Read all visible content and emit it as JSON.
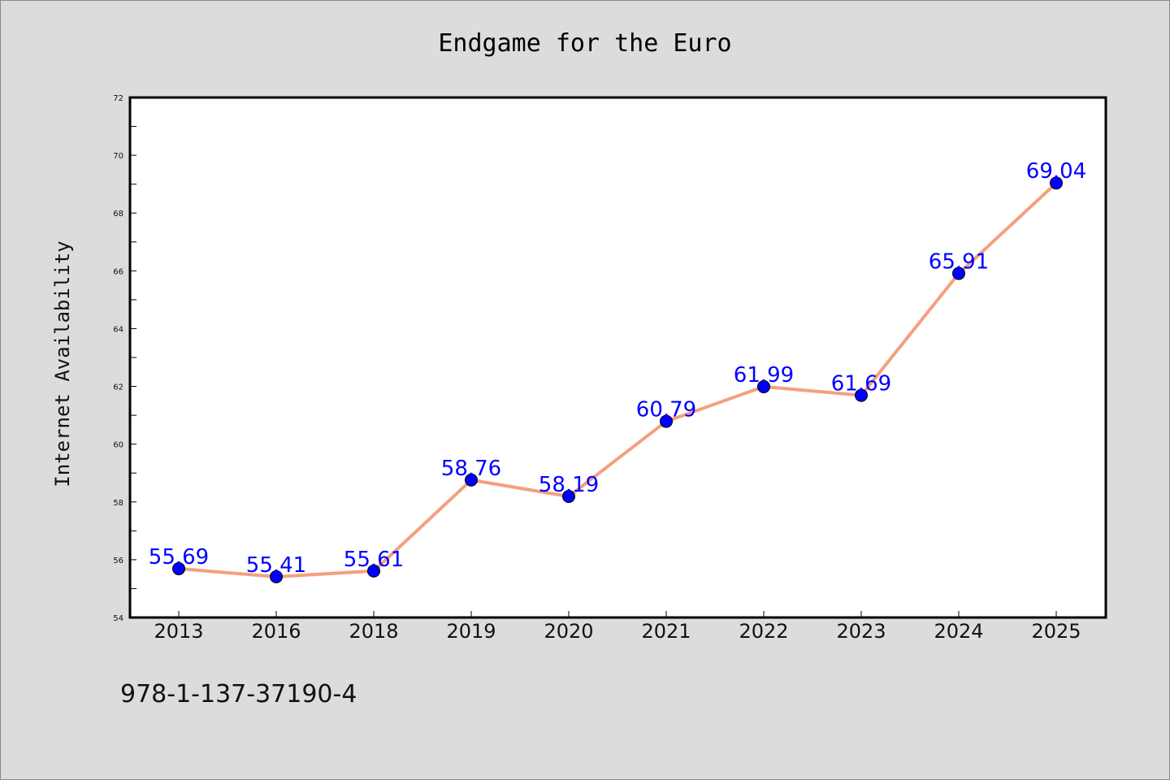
{
  "chart_data": {
    "type": "line",
    "title": "Endgame for the Euro",
    "xlabel": "",
    "ylabel": "Internet Availability",
    "categories": [
      "2013",
      "2016",
      "2018",
      "2019",
      "2020",
      "2021",
      "2022",
      "2023",
      "2024",
      "2025"
    ],
    "series": [
      {
        "values": [
          55.69,
          55.41,
          55.61,
          58.76,
          58.19,
          60.79,
          61.99,
          61.69,
          65.91,
          69.04
        ]
      }
    ],
    "data_labels": [
      "55.69",
      "55.41",
      "55.61",
      "58.76",
      "58.19",
      "60.79",
      "61.99",
      "61.69",
      "65.91",
      "69.04"
    ],
    "ylim": [
      54,
      72
    ],
    "yticks": [
      54,
      56,
      58,
      60,
      62,
      64,
      66,
      68,
      70,
      72
    ],
    "ytick_labels": [
      "54",
      "56",
      "58",
      "60",
      "62",
      "64",
      "66",
      "68",
      "70",
      "72"
    ],
    "grid": false,
    "colors": {
      "line": "#f4a07e",
      "marker": "#0000ff",
      "data_label": "#0000ff",
      "plot_background": "#ffffff",
      "figure_background": "#dcdcdc"
    }
  },
  "footer": {
    "isbn": "978-1-137-37190-4"
  }
}
